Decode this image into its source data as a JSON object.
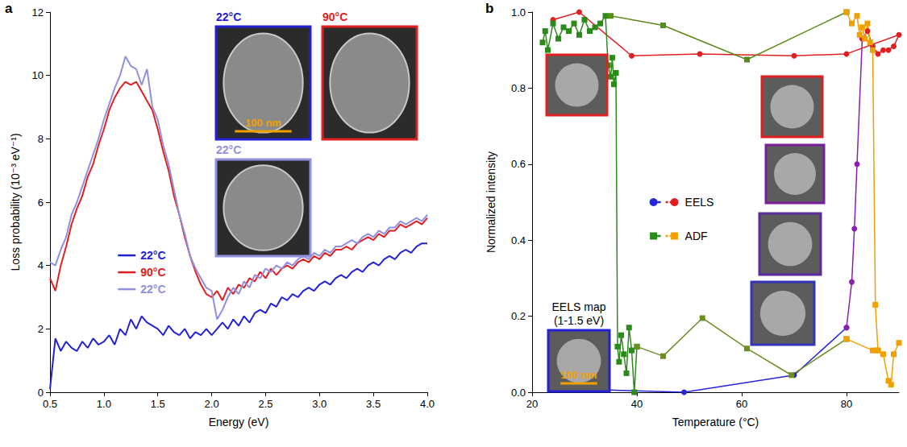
{
  "chart_data": [
    {
      "label": "a",
      "type": "line",
      "grid": false,
      "legend": "center left",
      "xlabel": "Energy (eV)",
      "ylabel": "Loss probability (10⁻³ eV⁻¹)",
      "xlim": [
        0.5,
        4.0
      ],
      "xticks": [
        0.5,
        {
          "value": 1,
          "label": "1.0"
        },
        1.5,
        {
          "value": 2,
          "label": "2.0"
        },
        2.5,
        {
          "value": 3,
          "label": "3.0"
        },
        3.5,
        {
          "value": 4,
          "label": "4.0"
        }
      ],
      "ylim": [
        0,
        12
      ],
      "yticks": [
        0,
        2,
        4,
        6,
        8,
        10,
        12
      ],
      "marker": "none",
      "x": [
        0.5,
        0.55,
        0.6,
        0.65,
        0.7,
        0.75,
        0.8,
        0.85,
        0.9,
        0.95,
        1.0,
        1.05,
        1.1,
        1.15,
        1.2,
        1.25,
        1.3,
        1.35,
        1.4,
        1.45,
        1.5,
        1.55,
        1.6,
        1.65,
        1.7,
        1.75,
        1.8,
        1.85,
        1.9,
        1.95,
        2.0,
        2.05,
        2.1,
        2.15,
        2.2,
        2.25,
        2.3,
        2.35,
        2.4,
        2.45,
        2.5,
        2.55,
        2.6,
        2.65,
        2.7,
        2.75,
        2.8,
        2.85,
        2.9,
        2.95,
        3.0,
        3.05,
        3.1,
        3.15,
        3.2,
        3.25,
        3.3,
        3.35,
        3.4,
        3.45,
        3.5,
        3.55,
        3.6,
        3.65,
        3.7,
        3.75,
        3.8,
        3.85,
        3.9,
        3.95,
        4.0
      ],
      "series": [
        {
          "name": "22°C",
          "color": "#2222d4",
          "values": [
            0.1,
            1.7,
            1.3,
            1.6,
            1.4,
            1.3,
            1.6,
            1.4,
            1.7,
            1.5,
            1.6,
            1.8,
            1.5,
            2.0,
            1.8,
            2.3,
            2.0,
            2.4,
            2.2,
            2.1,
            2.0,
            1.8,
            2.1,
            1.9,
            1.8,
            2.0,
            1.7,
            1.9,
            1.8,
            2.0,
            1.8,
            2.0,
            2.2,
            2.0,
            2.3,
            2.1,
            2.4,
            2.2,
            2.5,
            2.6,
            2.5,
            2.8,
            2.7,
            3.0,
            2.9,
            3.1,
            3.0,
            3.2,
            3.3,
            3.2,
            3.4,
            3.5,
            3.4,
            3.6,
            3.7,
            3.6,
            3.8,
            3.9,
            3.8,
            4.0,
            4.1,
            4.0,
            4.2,
            4.3,
            4.2,
            4.4,
            4.5,
            4.4,
            4.6,
            4.7,
            4.7
          ]
        },
        {
          "name": "90°C",
          "color": "#e02020",
          "values": [
            3.6,
            3.2,
            4.0,
            4.6,
            5.3,
            5.8,
            6.2,
            6.8,
            7.2,
            7.8,
            8.3,
            8.9,
            9.3,
            9.6,
            9.8,
            9.7,
            9.8,
            9.5,
            9.2,
            8.9,
            8.3,
            7.6,
            7.0,
            6.2,
            5.6,
            4.9,
            4.3,
            3.8,
            3.4,
            3.1,
            3.0,
            3.2,
            2.9,
            3.3,
            3.1,
            3.4,
            3.3,
            3.6,
            3.5,
            3.8,
            3.6,
            3.9,
            3.7,
            3.9,
            4.0,
            3.9,
            4.1,
            4.2,
            4.1,
            4.3,
            4.2,
            4.4,
            4.3,
            4.5,
            4.5,
            4.6,
            4.5,
            4.7,
            4.8,
            4.9,
            4.8,
            5.0,
            4.9,
            5.1,
            5.1,
            5.3,
            5.2,
            5.3,
            5.4,
            5.3,
            5.5
          ]
        },
        {
          "name": "22°C",
          "color": "#9090e0",
          "values": [
            4.1,
            4.0,
            4.5,
            4.9,
            5.6,
            6.0,
            6.5,
            7.0,
            7.5,
            8.0,
            8.6,
            9.1,
            9.6,
            10.0,
            10.6,
            10.3,
            10.2,
            9.7,
            10.2,
            9.0,
            8.6,
            7.8,
            7.2,
            6.4,
            5.6,
            5.0,
            4.3,
            3.9,
            3.6,
            3.3,
            3.2,
            2.3,
            2.6,
            3.0,
            3.3,
            3.1,
            3.5,
            3.3,
            3.7,
            3.6,
            3.9,
            3.8,
            4.0,
            3.9,
            4.1,
            4.0,
            4.2,
            4.3,
            4.2,
            4.4,
            4.3,
            4.5,
            4.4,
            4.6,
            4.6,
            4.7,
            4.8,
            4.7,
            4.9,
            5.0,
            4.9,
            5.1,
            5.0,
            5.2,
            5.2,
            5.4,
            5.3,
            5.4,
            5.5,
            5.4,
            5.6
          ]
        }
      ],
      "insets": [
        {
          "label": "22°C",
          "color": "#2222d4",
          "scale_bar": "100 nm"
        },
        {
          "label": "90°C",
          "color": "#e02020"
        },
        {
          "label": "22°C",
          "color": "#9090e0"
        }
      ]
    },
    {
      "label": "b",
      "type": "line",
      "grid": false,
      "legend": "center",
      "xlabel": "Temperature (°C)",
      "ylabel": "Normalized intensity",
      "xlim": [
        20,
        90
      ],
      "xticks": [
        20,
        40,
        60,
        80
      ],
      "ylim": [
        0,
        1
      ],
      "yticks": [
        {
          "value": 0,
          "label": "0.0"
        },
        {
          "value": 0.2,
          "label": "0.2"
        },
        {
          "value": 0.4,
          "label": "0.4"
        },
        {
          "value": 0.6,
          "label": "0.6"
        },
        {
          "value": 0.8,
          "label": "0.8"
        },
        {
          "value": 1,
          "label": "1.0"
        }
      ],
      "series": [
        {
          "name": "EELS",
          "color": "#2626d9",
          "marker": "circle",
          "x": [
            24,
            49,
            70,
            80
          ],
          "values": [
            0.01,
            0.0,
            0.045,
            0.17
          ]
        },
        {
          "name": "EELS",
          "color": "#8a1fb0",
          "marker": "circle",
          "x": [
            80,
            81,
            81.5,
            82,
            83
          ],
          "values": [
            0.17,
            0.29,
            0.43,
            0.6,
            0.93
          ]
        },
        {
          "name": "EELS",
          "color": "#e02020",
          "marker": "circle",
          "x": [
            83,
            84,
            85,
            86,
            87,
            88,
            89,
            90,
            80,
            70,
            52,
            39,
            29,
            24
          ],
          "values": [
            0.93,
            0.95,
            0.91,
            0.89,
            0.9,
            0.9,
            0.91,
            0.94,
            0.89,
            0.885,
            0.89,
            0.885,
            1.0,
            0.98
          ]
        },
        {
          "name": "ADF",
          "color": "#2a8a1a",
          "marker": "square",
          "x": [
            22,
            22.5,
            23,
            24,
            25,
            26,
            27,
            28,
            29,
            30,
            31,
            32,
            33,
            34,
            34.5,
            35,
            35.3,
            35.6,
            36,
            36.3,
            36.6,
            37,
            37.5,
            38,
            38.5,
            39,
            39.5,
            40
          ],
          "values": [
            0.92,
            0.95,
            0.9,
            0.97,
            0.93,
            0.96,
            0.95,
            0.97,
            0.94,
            0.98,
            0.95,
            0.96,
            0.97,
            0.99,
            0.86,
            0.83,
            0.88,
            0.81,
            0.84,
            0.12,
            0.08,
            0.15,
            0.1,
            0.05,
            0.17,
            0.11,
            0.0,
            0.12
          ]
        },
        {
          "name": "ADF",
          "color": "#6b8e23",
          "marker": "square",
          "x": [
            40,
            45,
            52.5,
            61,
            69.5,
            80
          ],
          "values": [
            0.12,
            0.095,
            0.195,
            0.115,
            0.045,
            0.14
          ]
        },
        {
          "name": "ADF",
          "color": "#5a8a1a",
          "marker": "square",
          "x": [
            35,
            45,
            61,
            80
          ],
          "values": [
            0.99,
            0.965,
            0.875,
            1.0
          ]
        },
        {
          "name": "ADF",
          "color": "#f0a000",
          "marker": "square",
          "x": [
            80,
            81,
            82,
            82.5,
            83,
            83.5,
            84,
            84.5,
            85,
            85.5,
            86,
            87,
            88,
            88.5,
            89,
            90
          ],
          "values": [
            1.0,
            0.97,
            0.99,
            0.94,
            0.96,
            0.93,
            0.97,
            0.92,
            0.9,
            0.23,
            0.11,
            0.1,
            0.03,
            0.02,
            0.1,
            0.13
          ]
        },
        {
          "name": "ADF",
          "color": "#f0a000",
          "marker": "square",
          "x": [
            80,
            85,
            86
          ],
          "values": [
            0.14,
            0.11,
            0.11
          ]
        }
      ],
      "insets": [
        {
          "color": "#e02020"
        },
        {
          "color": "#e02020"
        },
        {
          "color": "#7a1f9e"
        },
        {
          "color": "#5a2a9e"
        },
        {
          "color": "#3535b8"
        },
        {
          "color": "#2222d4",
          "label": "EELS map (1-1.5 eV)",
          "scale_bar": "100 nm"
        }
      ]
    }
  ]
}
